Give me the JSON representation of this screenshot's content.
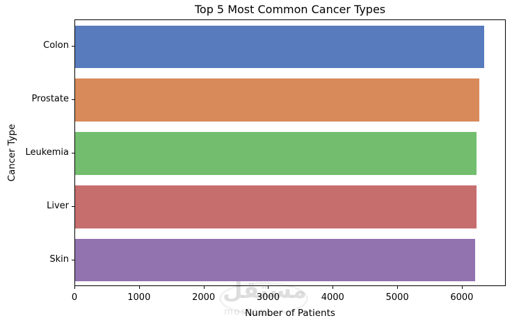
{
  "chart_data": {
    "type": "bar",
    "orientation": "horizontal",
    "title": "Top 5 Most Common Cancer Types",
    "xlabel": "Number of Patients",
    "ylabel": "Cancer Type",
    "categories": [
      "Colon",
      "Prostate",
      "Leukemia",
      "Liver",
      "Skin"
    ],
    "values": [
      6355,
      6285,
      6240,
      6235,
      6210
    ],
    "x_ticks": [
      0,
      1000,
      2000,
      3000,
      4000,
      5000,
      6000
    ],
    "xlim": [
      0,
      6680
    ],
    "bar_colors": [
      "#587bbe",
      "#d88a5a",
      "#73be6e",
      "#c66d6e",
      "#9273b0"
    ],
    "grid": false,
    "legend_position": "none",
    "background_color": "#ffffff",
    "spine_color": "#000000"
  },
  "watermark": {
    "arabic_logo": "مستقل",
    "latin_text": "mostaql"
  }
}
